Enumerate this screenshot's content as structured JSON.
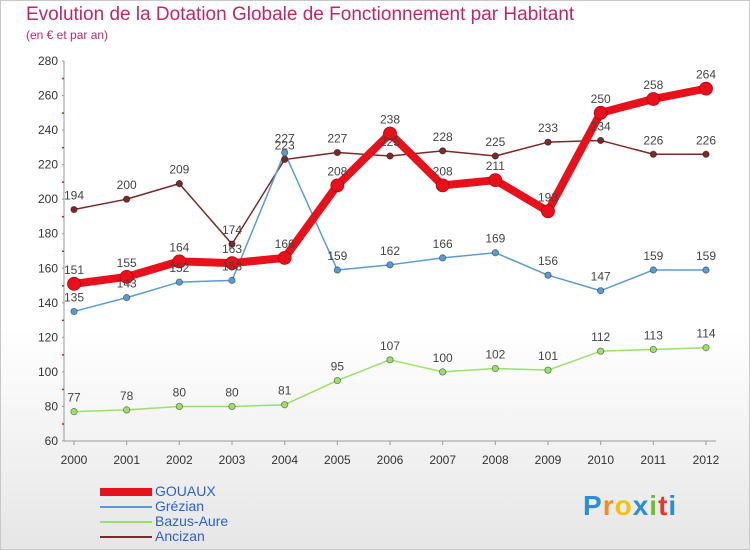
{
  "header": {
    "title": "Evolution de la Dotation Globale de Fonctionnement par Habitant",
    "subtitle": "(en € et par an)"
  },
  "logo": {
    "text": "Proxiti",
    "letters": [
      "P",
      "r",
      "o",
      "x",
      "i",
      "t",
      "i"
    ],
    "colors": [
      "#2a8fd6",
      "#f28c1e",
      "#f4c20d",
      "#2a8fd6",
      "#6cbf2a",
      "#e8362d",
      "#2a8fd6"
    ]
  },
  "chart_data": {
    "type": "line",
    "x": [
      "2000",
      "2001",
      "2002",
      "2003",
      "2004",
      "2005",
      "2006",
      "2007",
      "2008",
      "2009",
      "2010",
      "2011",
      "2012"
    ],
    "ylim": [
      60,
      280
    ],
    "yticks": [
      "60",
      "80",
      "100",
      "120",
      "140",
      "160",
      "180",
      "200",
      "220",
      "240",
      "260",
      "280"
    ],
    "grid": false,
    "legend_position": "bottom-left",
    "series": [
      {
        "name": "GOUAUX",
        "color": "#e8101a",
        "width": 8,
        "values": [
          151,
          155,
          164,
          163,
          166,
          208,
          238,
          208,
          211,
          193,
          250,
          258,
          264
        ],
        "labels": [
          "151",
          "155",
          "164",
          "163",
          "166",
          "208",
          "238",
          "208",
          "211",
          "193",
          "250",
          "258",
          "264"
        ]
      },
      {
        "name": "Grézian",
        "color": "#5b9bd5",
        "width": 1.5,
        "values": [
          135,
          143,
          152,
          153,
          227,
          159,
          162,
          166,
          169,
          156,
          147,
          159,
          159
        ],
        "labels": [
          "135",
          "143",
          "152",
          "153",
          "227",
          "159",
          "162",
          "166",
          "169",
          "156",
          "147",
          "159",
          "159"
        ]
      },
      {
        "name": "Bazus-Aure",
        "color": "#9be06a",
        "width": 1.5,
        "values": [
          77,
          78,
          80,
          80,
          81,
          95,
          107,
          100,
          102,
          101,
          112,
          113,
          114
        ],
        "labels": [
          "77",
          "78",
          "80",
          "80",
          "81",
          "95",
          "107",
          "100",
          "102",
          "101",
          "112",
          "113",
          "114"
        ]
      },
      {
        "name": "Ancizan",
        "color": "#7a2a2a",
        "width": 1.5,
        "values": [
          194,
          200,
          209,
          174,
          223,
          227,
          225,
          228,
          225,
          233,
          234,
          226,
          226
        ],
        "labels": [
          "194",
          "200",
          "209",
          "174",
          "223",
          "227",
          "225",
          "228",
          "225",
          "233",
          "234",
          "226",
          "226"
        ]
      }
    ]
  }
}
